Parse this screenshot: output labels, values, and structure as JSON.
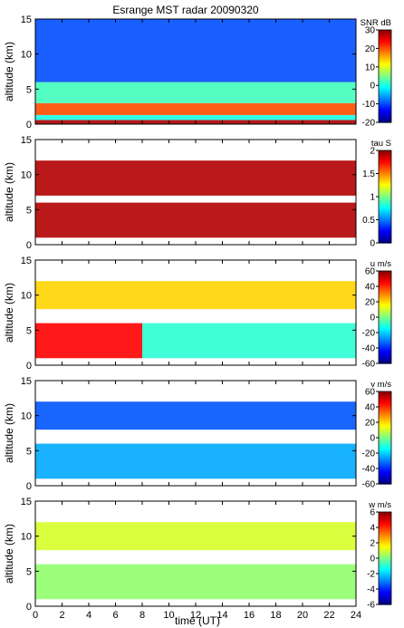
{
  "title": "Esrange MST radar 20090320",
  "xlabel": "time (UT)",
  "chart_data": [
    {
      "type": "heatmap",
      "ylabel": "altitude (km)",
      "ylim": [
        0,
        15
      ],
      "yticks": [
        0,
        5,
        10,
        15
      ],
      "xlim": [
        0,
        24
      ],
      "xticks": [
        0,
        2,
        4,
        6,
        8,
        10,
        12,
        14,
        16,
        18,
        20,
        22,
        24
      ],
      "colorbar": {
        "label": "SNR dB",
        "range": [
          -20,
          30
        ],
        "ticks": [
          -20,
          -10,
          0,
          10,
          20,
          30
        ]
      },
      "layers": [
        {
          "alt_range": [
            0,
            0.6
          ],
          "value": 28
        },
        {
          "alt_range": [
            0.6,
            1.3
          ],
          "value": 0
        },
        {
          "alt_range": [
            1.3,
            3.0
          ],
          "value": 20
        },
        {
          "alt_range": [
            3.0,
            6.0
          ],
          "value": 2
        },
        {
          "alt_range": [
            6.0,
            15.0
          ],
          "value": -10
        }
      ]
    },
    {
      "type": "heatmap",
      "ylabel": "altitude (km)",
      "ylim": [
        0,
        15
      ],
      "yticks": [
        0,
        5,
        10,
        15
      ],
      "xlim": [
        0,
        24
      ],
      "xticks": [
        0,
        2,
        4,
        6,
        8,
        10,
        12,
        14,
        16,
        18,
        20,
        22,
        24
      ],
      "colorbar": {
        "label": "tau S",
        "range": [
          0,
          2
        ],
        "ticks": [
          0,
          0.5,
          1,
          1.5,
          2
        ]
      },
      "layers": [
        {
          "alt_range": [
            1.0,
            6.0
          ],
          "value": 1.9
        },
        {
          "alt_range": [
            7.0,
            12.0
          ],
          "value": 1.9
        }
      ]
    },
    {
      "type": "heatmap",
      "ylabel": "altitude (km)",
      "ylim": [
        0,
        15
      ],
      "yticks": [
        0,
        5,
        10,
        15
      ],
      "xlim": [
        0,
        24
      ],
      "xticks": [
        0,
        2,
        4,
        6,
        8,
        10,
        12,
        14,
        16,
        18,
        20,
        22,
        24
      ],
      "colorbar": {
        "label": "u m/s",
        "range": [
          -60,
          60
        ],
        "ticks": [
          -60,
          -40,
          -20,
          0,
          20,
          40,
          60
        ]
      },
      "layers": [
        {
          "alt_range": [
            1.0,
            6.0
          ],
          "value": 45,
          "time_range": [
            0,
            8
          ]
        },
        {
          "alt_range": [
            1.0,
            6.0
          ],
          "value": -10,
          "time_range": [
            8,
            24
          ]
        },
        {
          "alt_range": [
            8.0,
            12.0
          ],
          "value": 20
        }
      ]
    },
    {
      "type": "heatmap",
      "ylabel": "altitude (km)",
      "ylim": [
        0,
        15
      ],
      "yticks": [
        0,
        5,
        10,
        15
      ],
      "xlim": [
        0,
        24
      ],
      "xticks": [
        0,
        2,
        4,
        6,
        8,
        10,
        12,
        14,
        16,
        18,
        20,
        22,
        24
      ],
      "colorbar": {
        "label": "v m/s",
        "range": [
          -60,
          60
        ],
        "ticks": [
          -60,
          -40,
          -20,
          0,
          20,
          40,
          60
        ]
      },
      "layers": [
        {
          "alt_range": [
            1.0,
            6.0
          ],
          "value": -25
        },
        {
          "alt_range": [
            8.0,
            12.0
          ],
          "value": -35
        }
      ]
    },
    {
      "type": "heatmap",
      "ylabel": "altitude (km)",
      "ylim": [
        0,
        15
      ],
      "yticks": [
        0,
        5,
        10,
        15
      ],
      "xlim": [
        0,
        24
      ],
      "xticks": [
        0,
        2,
        4,
        6,
        8,
        10,
        12,
        14,
        16,
        18,
        20,
        22,
        24
      ],
      "colorbar": {
        "label": "w m/s",
        "range": [
          -6,
          6
        ],
        "ticks": [
          -6,
          -4,
          -2,
          0,
          2,
          4,
          6
        ]
      },
      "layers": [
        {
          "alt_range": [
            1.0,
            6.0
          ],
          "value": 0.2
        },
        {
          "alt_range": [
            8.0,
            12.0
          ],
          "value": 1.0
        }
      ]
    }
  ]
}
